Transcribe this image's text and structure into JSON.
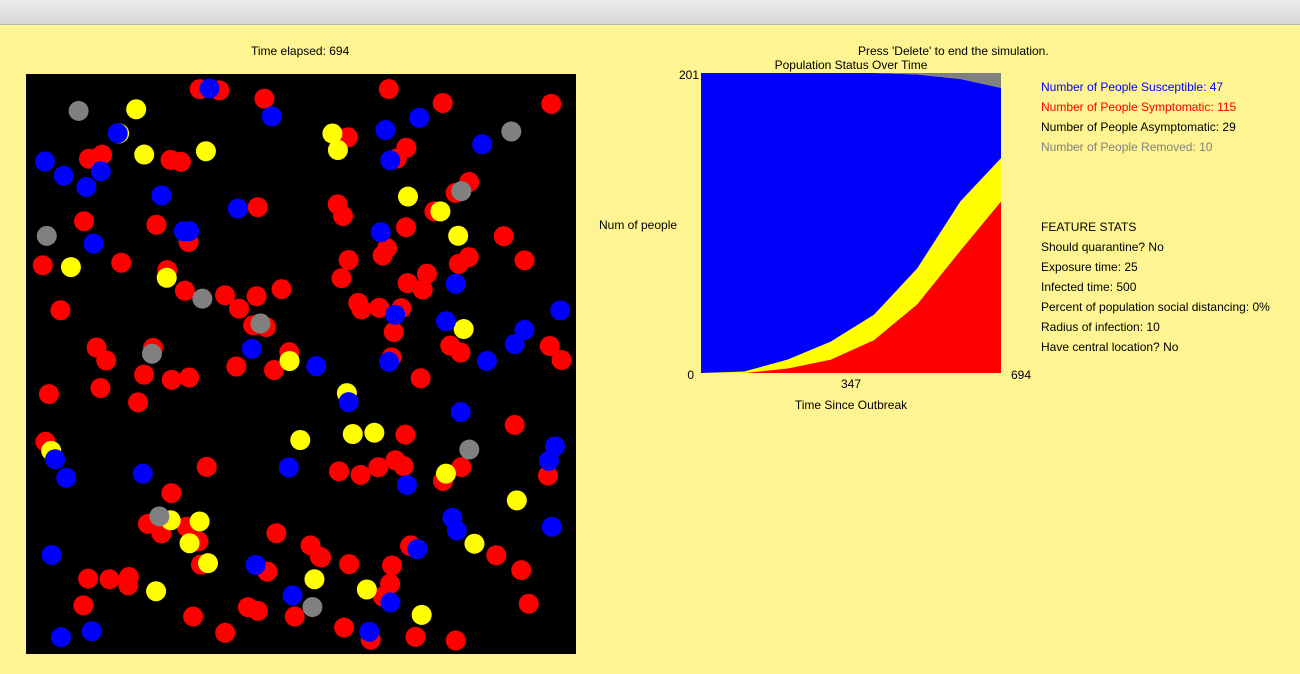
{
  "header": {
    "time_elapsed": "Time elapsed: 694",
    "instruction": "Press 'Delete' to end the simulation."
  },
  "chart_data": {
    "type": "stacked-area",
    "title": "Population Status Over Time",
    "y_label": "Num of people",
    "x_label": "Time Since Outbreak",
    "x": [
      0,
      100,
      200,
      300,
      400,
      500,
      600,
      694
    ],
    "series": [
      {
        "name": "Symptomatic",
        "color": "#ff0000",
        "values": [
          0,
          0,
          3,
          9,
          22,
          46,
          82,
          115
        ]
      },
      {
        "name": "Asymptomatic",
        "color": "#ffff00",
        "values": [
          0,
          1,
          6,
          12,
          17,
          24,
          33,
          29
        ]
      },
      {
        "name": "Susceptible",
        "color": "#0000ff",
        "values": [
          201,
          200,
          192,
          180,
          162,
          130,
          82,
          47
        ]
      },
      {
        "name": "Removed",
        "color": "#808080",
        "values": [
          0,
          0,
          0,
          0,
          0,
          1,
          4,
          10
        ]
      }
    ],
    "xlim": [
      0,
      694
    ],
    "ylim": [
      0,
      201
    ],
    "xticks": [
      347,
      694
    ],
    "yticks": [
      0,
      201
    ]
  },
  "legend": [
    {
      "text": "Number of People Susceptible: 47",
      "color": "#0000ff"
    },
    {
      "text": "Number of People Symptomatic: 115",
      "color": "#ff0000"
    },
    {
      "text": "Number of People Asymptomatic: 29",
      "color": "#000000"
    },
    {
      "text": "Number of People Removed: 10",
      "color": "#808080"
    }
  ],
  "feature_stats": [
    "FEATURE STATS",
    "Should quarantine? No",
    "Exposure time: 25",
    "Infected time: 500",
    "Percent of population social distancing: 0%",
    "Radius of infection: 10",
    "Have central location? No"
  ]
}
